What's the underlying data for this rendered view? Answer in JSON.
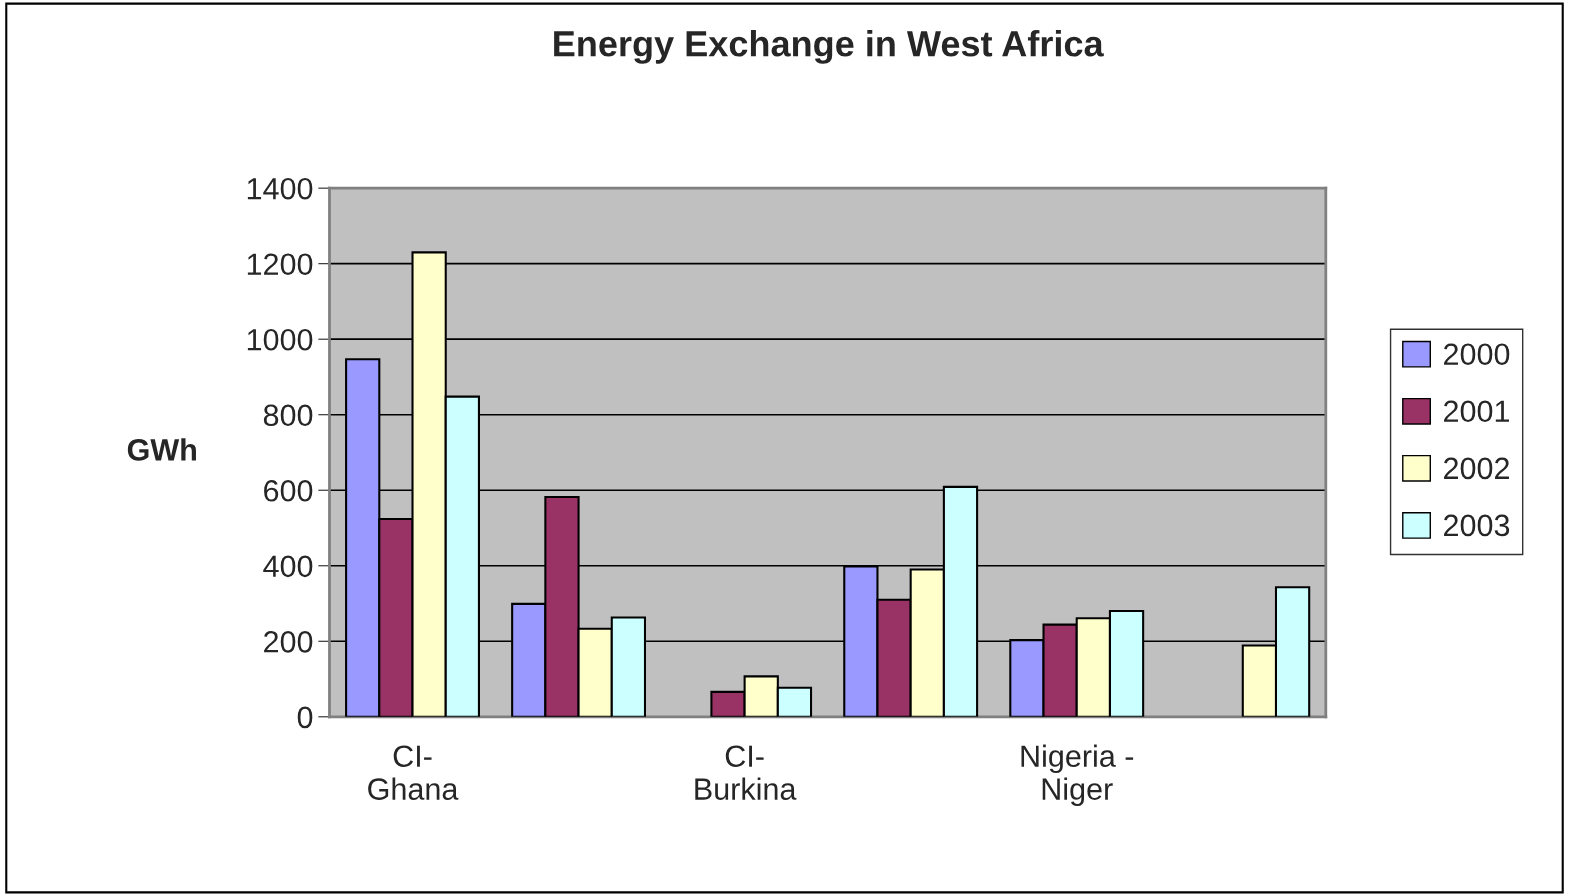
{
  "chart_data": {
    "type": "bar",
    "title": "Energy Exchange in West Africa",
    "ylabel": "GWh",
    "categories": [
      "CI-\nGhana",
      null,
      "CI-\nBurkina",
      null,
      "Nigeria -\nNiger",
      null
    ],
    "series": [
      {
        "name": "2000",
        "color": "#9999ff",
        "values": [
          947,
          299,
          null,
          398,
          203,
          null
        ]
      },
      {
        "name": "2001",
        "color": "#993366",
        "values": [
          524,
          582,
          66,
          310,
          244,
          null
        ]
      },
      {
        "name": "2002",
        "color": "#ffffcc",
        "values": [
          1230,
          233,
          107,
          390,
          261,
          189
        ]
      },
      {
        "name": "2003",
        "color": "#ccffff",
        "values": [
          848,
          263,
          77,
          609,
          280,
          343
        ]
      }
    ],
    "ylim": [
      0,
      1400
    ],
    "yticks": [
      0,
      200,
      400,
      600,
      800,
      1000,
      1200,
      1400
    ],
    "grid": "y",
    "legend": "right"
  }
}
